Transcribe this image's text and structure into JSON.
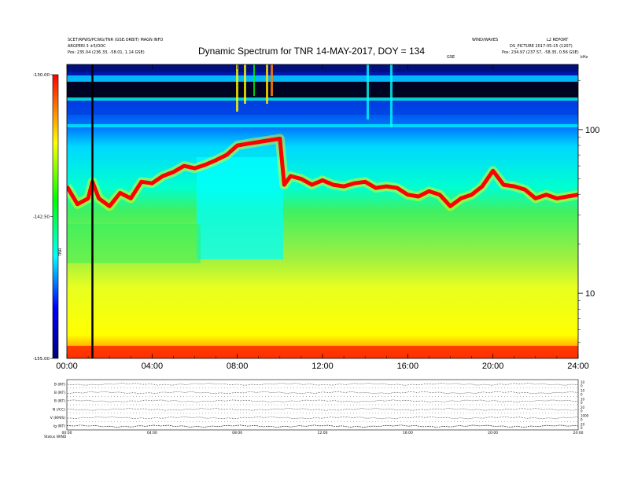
{
  "header": {
    "left_line1": "SCET/RPWS/PCWG/TNR (GSE:ORBIT) MAGN INFO",
    "left_line2": "ARGPERI 3 ±5/OOC",
    "left_line3": "Pos: 235.04 (236.33, -58.01, 1.14 GSE)",
    "right_top_a": "WIND/WAVES",
    "right_top_b": "L2 REPORT",
    "right_line2": "DS_PICTURE 2017-05-15 (1207)",
    "right_line3": "Pos: 234.97 (237.57, -58.35, 0.56 GSE)",
    "right_small": "GSE",
    "right_small2": "kHz"
  },
  "chart_data": [
    {
      "type": "heatmap",
      "title": "Dynamic Spectrum for TNR 14-MAY-2017, DOY = 134",
      "xlabel": "",
      "ylabel": "",
      "x_ticks": [
        "00:00",
        "04:00",
        "08:00",
        "12:00",
        "16:00",
        "20:00",
        "24:00"
      ],
      "x_range_hours": [
        0,
        24
      ],
      "y_scale": "log",
      "y_ticks": [
        "100",
        "10"
      ],
      "y_tick_values_khz": [
        100,
        10
      ],
      "y_range_khz": [
        4,
        250
      ],
      "colorbar": {
        "label": "TNR",
        "ticks": [
          "-130.00",
          "-142.50",
          "-155.00"
        ],
        "min": -155.0,
        "max": -130.0,
        "colors": [
          "#000080",
          "#0000ff",
          "#00ffff",
          "#00ff00",
          "#ffff00",
          "#ff0000"
        ]
      },
      "plasma_line_khz": {
        "hours": [
          0.0,
          0.5,
          1.0,
          1.2,
          1.5,
          2.0,
          2.5,
          3.0,
          3.5,
          4.0,
          4.5,
          5.0,
          5.5,
          6.0,
          6.5,
          7.0,
          7.5,
          8.0,
          8.5,
          9.0,
          9.5,
          10.0,
          10.2,
          10.5,
          11.0,
          11.5,
          12.0,
          12.5,
          13.0,
          13.5,
          14.0,
          14.5,
          15.0,
          15.5,
          16.0,
          16.5,
          17.0,
          17.5,
          18.0,
          18.5,
          19.0,
          19.5,
          20.0,
          20.5,
          21.0,
          21.5,
          22.0,
          22.5,
          23.0,
          23.5,
          24.0
        ],
        "values": [
          45,
          35,
          38,
          48,
          38,
          34,
          41,
          38,
          48,
          47,
          52,
          55,
          60,
          58,
          61,
          65,
          70,
          80,
          82,
          84,
          86,
          88,
          46,
          52,
          50,
          46,
          49,
          46,
          45,
          47,
          48,
          44,
          45,
          44,
          40,
          39,
          42,
          40,
          34,
          38,
          40,
          45,
          56,
          46,
          45,
          43,
          38,
          40,
          38,
          39,
          40
        ]
      },
      "marker_hour": 1.2
    },
    {
      "type": "line",
      "title": "",
      "panel_labels": [
        "B (NT)",
        "B (NT)",
        "B (NT)",
        "N (/CC)",
        "V (KM/S)",
        "Ig (NT)"
      ],
      "right_ticks": [
        [
          "10",
          "0"
        ],
        [
          "10",
          "0"
        ],
        [
          "10",
          "0"
        ],
        [
          "20",
          "0"
        ],
        [
          "1000",
          "0"
        ],
        [
          "20",
          "0"
        ]
      ],
      "x_ticks": [
        "00:00",
        "04:00",
        "08:00",
        "12:00",
        "16:00",
        "20:00",
        "24:00"
      ],
      "footer_label": "Status   WIND"
    }
  ]
}
